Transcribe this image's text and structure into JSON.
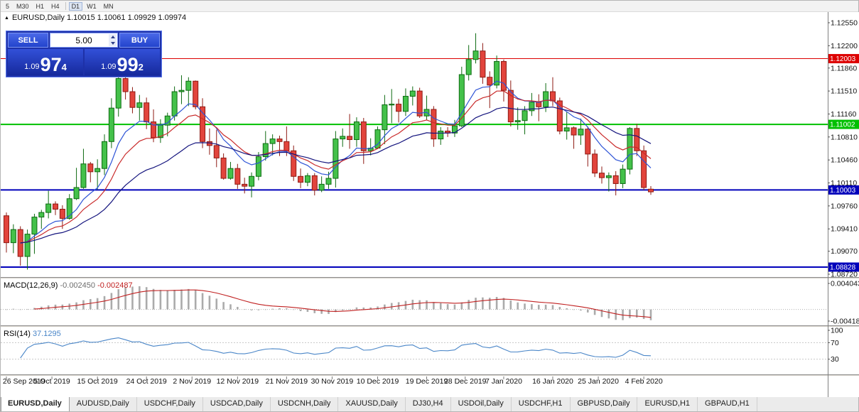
{
  "toolbar": {
    "items": [
      {
        "label": "5"
      },
      {
        "label": "M30"
      },
      {
        "label": "H1"
      },
      {
        "label": "H4"
      },
      {
        "sep": true
      },
      {
        "label": "D1",
        "active": true
      },
      {
        "label": "W1"
      },
      {
        "label": "MN"
      }
    ]
  },
  "chart": {
    "title_text": "EURUSD,Daily 1.10015 1.10061 1.09929 1.09974"
  },
  "trade_panel": {
    "sell_label": "SELL",
    "buy_label": "BUY",
    "volume": "5.00",
    "sell_price": {
      "prefix": "1.09",
      "big": "97",
      "sup": "4"
    },
    "buy_price": {
      "prefix": "1.09",
      "big": "99",
      "sup": "2"
    }
  },
  "tabbar": {
    "tabs": [
      "EURUSD,Daily",
      "AUDUSD,Daily",
      "USDCHF,Daily",
      "USDCAD,Daily",
      "USDCNH,Daily",
      "XAUUSD,Daily",
      "DJ30,H4",
      "USDOil,Daily",
      "USDCHF,H1",
      "GBPUSD,Daily",
      "EURUSD,H1",
      "GBPAUD,H1"
    ],
    "active": "EURUSD,Daily"
  },
  "colors": {
    "bull": "#44C14A",
    "bull_border": "#0E6B12",
    "bear": "#E2443C",
    "bear_border": "#8E1B14",
    "axis_text": "#111111"
  },
  "chart_data": {
    "type": "candlestick",
    "symbol": "EURUSD",
    "timeframe": "Daily",
    "current_ohlc": {
      "open": "1.10015",
      "high": "1.10061",
      "low": "1.09929",
      "close": "1.09974"
    },
    "price_axis_ticks": [
      "1.12550",
      "1.12200",
      "1.11860",
      "1.11510",
      "1.11160",
      "1.10810",
      "1.10460",
      "1.10110",
      "1.09760",
      "1.09410",
      "1.09070",
      "1.08720"
    ],
    "hlines": [
      {
        "price": 1.12003,
        "label": "1.12003",
        "color": "#DD0000",
        "width": 1
      },
      {
        "price": 1.11002,
        "label": "1.11002",
        "color": "#00C000",
        "width": 2
      },
      {
        "price": 1.10003,
        "label": "1.10003",
        "color": "#0000BB",
        "width": 2
      },
      {
        "price": 1.08828,
        "label": "1.08828",
        "color": "#0000BB",
        "width": 2
      }
    ],
    "x_labels": [
      {
        "text": "26 Sep 2019",
        "i": 0
      },
      {
        "text": "5 Oct 2019",
        "i": 6.5
      },
      {
        "text": "15 Oct 2019",
        "i": 13
      },
      {
        "text": "24 Oct 2019",
        "i": 20
      },
      {
        "text": "2 Nov 2019",
        "i": 26.5
      },
      {
        "text": "12 Nov 2019",
        "i": 33
      },
      {
        "text": "21 Nov 2019",
        "i": 40
      },
      {
        "text": "30 Nov 2019",
        "i": 46.5
      },
      {
        "text": "10 Dec 2019",
        "i": 53
      },
      {
        "text": "19 Dec 2019",
        "i": 60
      },
      {
        "text": "28 Dec 2019",
        "i": 65.5
      },
      {
        "text": "7 Jan 2020",
        "i": 71
      },
      {
        "text": "16 Jan 2020",
        "i": 78
      },
      {
        "text": "25 Jan 2020",
        "i": 84.5
      },
      {
        "text": "4 Feb 2020",
        "i": 91
      }
    ],
    "moving_averages": [
      {
        "type": "EMA",
        "period": 8,
        "color": "#2E54D6"
      },
      {
        "type": "EMA",
        "period": 13,
        "color": "#C92A2A"
      },
      {
        "type": "EMA",
        "period": 26,
        "color": "#14147E"
      }
    ],
    "macd": {
      "label": "MACD(12,26,9)",
      "value_main": "-0.002450",
      "value_signal": "-0.002487",
      "fast": 12,
      "slow": 26,
      "signal": 9,
      "axis_labels": [
        "0.004043",
        "-0.004187"
      ],
      "histogram_color": "#ABABAB",
      "signal_color": "#C02020"
    },
    "rsi": {
      "label": "RSI(14)",
      "value": "37.1295",
      "period": 14,
      "axis_labels": [
        "100",
        "70",
        "30"
      ],
      "levels": [
        70,
        30
      ],
      "color": "#4A86C8"
    },
    "candles": [
      [
        1.0961,
        1.0966,
        1.0905,
        1.092
      ],
      [
        1.092,
        1.0948,
        1.0904,
        1.094
      ],
      [
        1.094,
        1.0945,
        1.0885,
        1.0899
      ],
      [
        1.0899,
        1.094,
        1.0879,
        1.0933
      ],
      [
        1.0933,
        1.0964,
        1.0903,
        1.0959
      ],
      [
        1.0959,
        1.097,
        1.0941,
        1.0966
      ],
      [
        1.0966,
        1.0999,
        1.0957,
        1.0979
      ],
      [
        1.0979,
        1.0983,
        1.0962,
        1.0971
      ],
      [
        1.0971,
        1.0977,
        1.0941,
        1.0957
      ],
      [
        1.0957,
        1.0994,
        1.0955,
        1.0987
      ],
      [
        1.0987,
        1.1034,
        1.0985,
        1.1004
      ],
      [
        1.1004,
        1.1063,
        1.1002,
        1.104
      ],
      [
        1.104,
        1.1043,
        1.1012,
        1.1028
      ],
      [
        1.1028,
        1.1047,
        1.1001,
        1.1033
      ],
      [
        1.1033,
        1.1085,
        1.1023,
        1.1074
      ],
      [
        1.1074,
        1.114,
        1.1064,
        1.1125
      ],
      [
        1.1125,
        1.1172,
        1.1112,
        1.117
      ],
      [
        1.117,
        1.1179,
        1.1138,
        1.115
      ],
      [
        1.115,
        1.1157,
        1.1117,
        1.1126
      ],
      [
        1.1126,
        1.1145,
        1.1106,
        1.1133
      ],
      [
        1.1133,
        1.1141,
        1.1093,
        1.1104
      ],
      [
        1.1104,
        1.1123,
        1.1073,
        1.108
      ],
      [
        1.108,
        1.1108,
        1.1072,
        1.1099
      ],
      [
        1.1099,
        1.1118,
        1.1082,
        1.1113
      ],
      [
        1.1113,
        1.1158,
        1.1106,
        1.115
      ],
      [
        1.115,
        1.1175,
        1.1131,
        1.1152
      ],
      [
        1.1152,
        1.1172,
        1.1128,
        1.1166
      ],
      [
        1.1166,
        1.1167,
        1.1123,
        1.1127
      ],
      [
        1.1127,
        1.114,
        1.1064,
        1.1074
      ],
      [
        1.1074,
        1.1094,
        1.1054,
        1.1068
      ],
      [
        1.1068,
        1.1092,
        1.1035,
        1.1049
      ],
      [
        1.1049,
        1.1056,
        1.1016,
        1.1018
      ],
      [
        1.1018,
        1.1043,
        1.1016,
        1.1033
      ],
      [
        1.1033,
        1.104,
        1.1002,
        1.1009
      ],
      [
        1.1009,
        1.1019,
        1.0995,
        1.1006
      ],
      [
        1.1006,
        1.1027,
        1.0989,
        1.1021
      ],
      [
        1.1021,
        1.1058,
        1.1015,
        1.1051
      ],
      [
        1.1051,
        1.109,
        1.1045,
        1.1071
      ],
      [
        1.1071,
        1.1085,
        1.1053,
        1.1078
      ],
      [
        1.1078,
        1.1083,
        1.1052,
        1.1074
      ],
      [
        1.1074,
        1.1097,
        1.1052,
        1.106
      ],
      [
        1.106,
        1.1068,
        1.1014,
        1.1021
      ],
      [
        1.1021,
        1.1033,
        1.1003,
        1.1012
      ],
      [
        1.1012,
        1.1026,
        1.1006,
        1.1022
      ],
      [
        1.1022,
        1.1026,
        1.0992,
        1.1
      ],
      [
        1.1,
        1.1021,
        1.0997,
        1.1009
      ],
      [
        1.1009,
        1.1028,
        1.1002,
        1.1018
      ],
      [
        1.1018,
        1.109,
        1.1004,
        1.1078
      ],
      [
        1.1078,
        1.1094,
        1.1066,
        1.1082
      ],
      [
        1.1082,
        1.1116,
        1.1063,
        1.1077
      ],
      [
        1.1077,
        1.1111,
        1.1066,
        1.1104
      ],
      [
        1.1104,
        1.111,
        1.104,
        1.106
      ],
      [
        1.106,
        1.1079,
        1.1053,
        1.1064
      ],
      [
        1.1064,
        1.1097,
        1.1063,
        1.1092
      ],
      [
        1.1092,
        1.1145,
        1.107,
        1.113
      ],
      [
        1.113,
        1.1154,
        1.1102,
        1.1131
      ],
      [
        1.1131,
        1.1139,
        1.1103,
        1.112
      ],
      [
        1.112,
        1.1155,
        1.1113,
        1.1143
      ],
      [
        1.1143,
        1.1158,
        1.1129,
        1.1151
      ],
      [
        1.1151,
        1.1156,
        1.111,
        1.1113
      ],
      [
        1.1113,
        1.1144,
        1.1107,
        1.1123
      ],
      [
        1.1123,
        1.1128,
        1.1066,
        1.1078
      ],
      [
        1.1078,
        1.1096,
        1.1069,
        1.109
      ],
      [
        1.109,
        1.1096,
        1.1081,
        1.1087
      ],
      [
        1.1087,
        1.1107,
        1.1081,
        1.1098
      ],
      [
        1.1098,
        1.1188,
        1.1096,
        1.1176
      ],
      [
        1.1176,
        1.1221,
        1.1167,
        1.1199
      ],
      [
        1.1199,
        1.1239,
        1.1193,
        1.1212
      ],
      [
        1.1212,
        1.1224,
        1.1162,
        1.1172
      ],
      [
        1.1172,
        1.1181,
        1.1125,
        1.116
      ],
      [
        1.116,
        1.1205,
        1.1155,
        1.1196
      ],
      [
        1.1196,
        1.1199,
        1.1135,
        1.1152
      ],
      [
        1.1152,
        1.1167,
        1.1097,
        1.1104
      ],
      [
        1.1104,
        1.1126,
        1.1092,
        1.1106
      ],
      [
        1.1106,
        1.1128,
        1.1085,
        1.1121
      ],
      [
        1.1121,
        1.1148,
        1.1113,
        1.1134
      ],
      [
        1.1134,
        1.1146,
        1.1105,
        1.1127
      ],
      [
        1.1127,
        1.1163,
        1.1119,
        1.115
      ],
      [
        1.115,
        1.1172,
        1.1128,
        1.1136
      ],
      [
        1.1136,
        1.1141,
        1.1085,
        1.109
      ],
      [
        1.109,
        1.1119,
        1.1077,
        1.1095
      ],
      [
        1.1095,
        1.1097,
        1.1063,
        1.1084
      ],
      [
        1.1084,
        1.1109,
        1.1069,
        1.1093
      ],
      [
        1.1093,
        1.1097,
        1.1036,
        1.1055
      ],
      [
        1.1055,
        1.1062,
        1.102,
        1.1026
      ],
      [
        1.1026,
        1.1036,
        1.101,
        1.1019
      ],
      [
        1.1019,
        1.1027,
        1.0998,
        1.1022
      ],
      [
        1.1022,
        1.1029,
        1.0992,
        1.101
      ],
      [
        1.101,
        1.1039,
        1.1003,
        1.1032
      ],
      [
        1.1032,
        1.1096,
        1.1024,
        1.1094
      ],
      [
        1.1094,
        1.1101,
        1.1052,
        1.106
      ],
      [
        1.106,
        1.1068,
        1.1,
        1.1004
      ],
      [
        1.10015,
        1.10061,
        1.09929,
        1.09974
      ]
    ]
  }
}
